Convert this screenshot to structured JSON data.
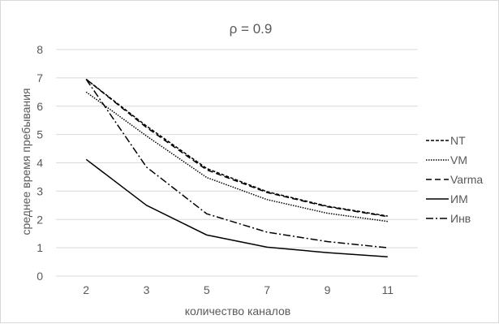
{
  "chart_data": {
    "type": "line",
    "title": "ρ = 0.9",
    "xlabel": "количество каналов",
    "ylabel": "среднее время пребывания",
    "categories": [
      "2",
      "3",
      "5",
      "7",
      "9",
      "11"
    ],
    "y_ticks": [
      "0",
      "1",
      "2",
      "3",
      "4",
      "5",
      "6",
      "7",
      "8"
    ],
    "ylim": [
      0,
      8
    ],
    "grid": "horizontal",
    "legend_position": "right",
    "series": [
      {
        "name": "NT",
        "dash": "4,2",
        "values": [
          6.95,
          5.3,
          3.8,
          2.98,
          2.47,
          2.12
        ]
      },
      {
        "name": "VM",
        "dash": "1.5,1.5",
        "values": [
          6.5,
          4.95,
          3.48,
          2.7,
          2.22,
          1.93
        ]
      },
      {
        "name": "Varma",
        "dash": "7,4",
        "values": [
          6.95,
          5.25,
          3.75,
          2.95,
          2.45,
          2.1
        ]
      },
      {
        "name": "ИМ",
        "dash": "",
        "values": [
          4.12,
          2.5,
          1.45,
          1.02,
          0.83,
          0.68
        ]
      },
      {
        "name": "Инв",
        "dash": "9,3,2,3",
        "values": [
          6.95,
          3.85,
          2.2,
          1.55,
          1.22,
          1.0
        ]
      }
    ],
    "colors": {
      "series": "#000000",
      "grid": "#d9d9d9",
      "text": "#595959"
    }
  }
}
